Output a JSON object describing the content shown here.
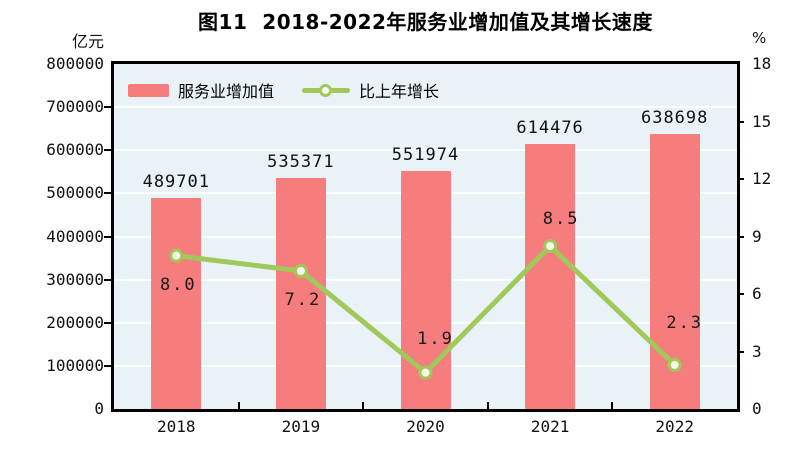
{
  "figure": {
    "title": "图11  2018-2022年服务业增加值及其增长速度",
    "left_unit": "亿元",
    "right_unit": "%"
  },
  "legend": {
    "bar_label": "服务业增加值",
    "line_label": "比上年增长"
  },
  "chart_data": {
    "type": "bar",
    "title": "图11 2018-2022年服务业增加值及其增长速度",
    "categories": [
      "2018",
      "2019",
      "2020",
      "2021",
      "2022"
    ],
    "series": [
      {
        "name": "服务业增加值",
        "type": "bar",
        "axis": "left",
        "values": [
          489701,
          535371,
          551974,
          614476,
          638698
        ],
        "labels": [
          "489701",
          "535371",
          "551974",
          "614476",
          "638698"
        ]
      },
      {
        "name": "比上年增长",
        "type": "line",
        "axis": "right",
        "values": [
          8.0,
          7.2,
          1.9,
          8.5,
          2.3
        ],
        "labels": [
          "8.0",
          "7.2",
          "1.9",
          "8.5",
          "2.3"
        ],
        "label_offsets": [
          [
            2,
            30
          ],
          [
            2,
            30
          ],
          [
            10,
            -33
          ],
          [
            11,
            -26
          ],
          [
            10,
            -41
          ]
        ]
      }
    ],
    "left_axis": {
      "unit": "亿元",
      "min": 0,
      "max": 800000,
      "step": 100000,
      "tick_labels": [
        "0",
        "100000",
        "200000",
        "300000",
        "400000",
        "500000",
        "600000",
        "700000",
        "800000"
      ]
    },
    "right_axis": {
      "unit": "%",
      "min": 0,
      "max": 18,
      "step": 3,
      "tick_labels": [
        "0",
        "3",
        "6",
        "9",
        "12",
        "15",
        "18"
      ]
    },
    "legend_position": "inside-top-left",
    "grid": "horizontal",
    "colors": {
      "bar": "#F57D7D",
      "line": "#A0C85A",
      "marker_fill": "#FCFCEE",
      "plot_bg": "#E9F2F7",
      "grid": "#FFFFFF",
      "axis": "#000000",
      "text": "#111111"
    }
  }
}
